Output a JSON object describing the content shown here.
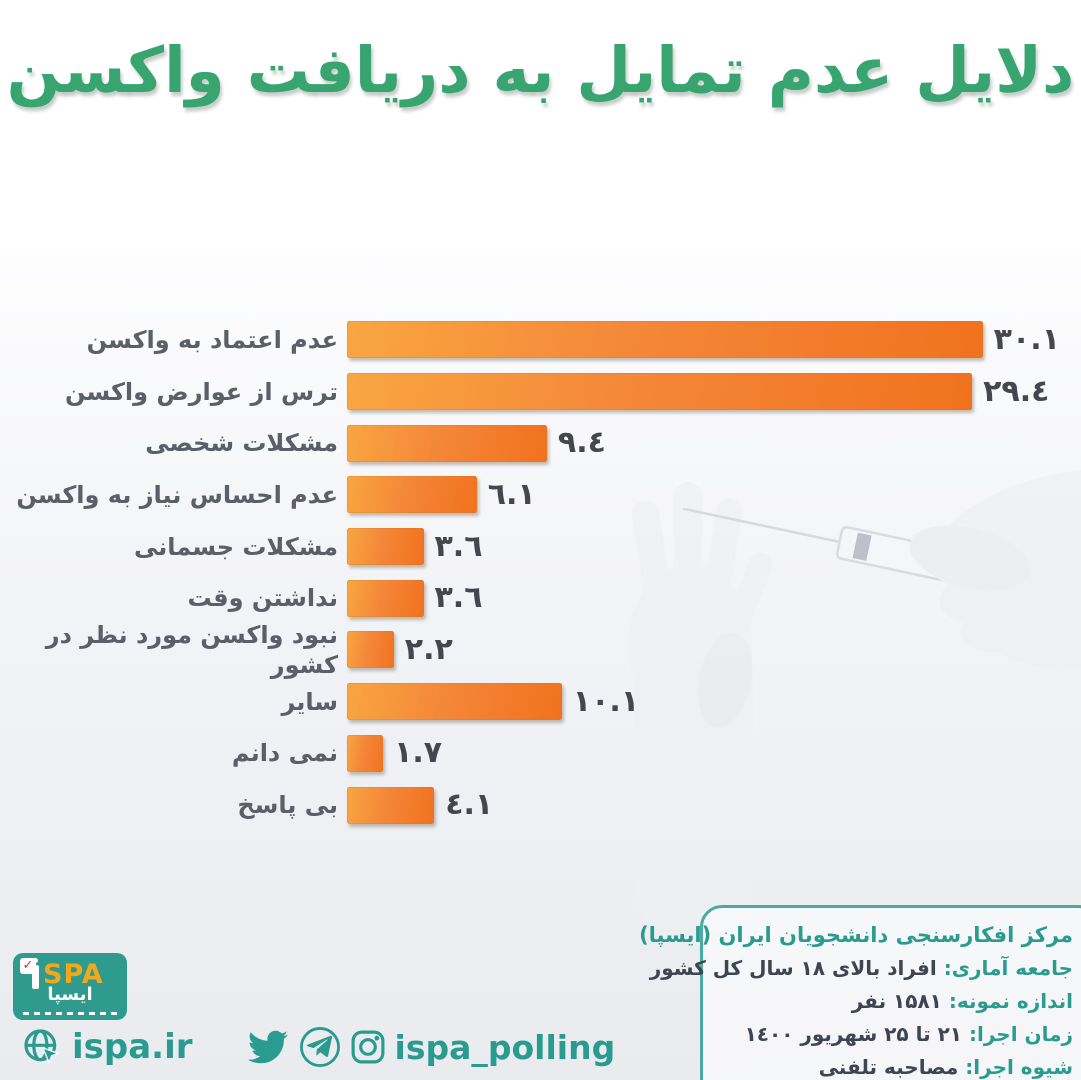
{
  "title": "دلایل عدم تمایل به دریافت واکسن",
  "colors": {
    "title_green": "#38a571",
    "teal": "#2a9b91",
    "bar_gradient_light": "#f9a641",
    "bar_gradient_dark": "#f1721e",
    "value_text": "#46464f",
    "label_text": "#5b6068",
    "logo_yellow": "#f3a81c",
    "logo_red": "#d6332c"
  },
  "chart_data": {
    "type": "bar",
    "orientation": "horizontal",
    "title": "دلایل عدم تمایل به دریافت واکسن",
    "categories": [
      "عدم اعتماد به واکسن",
      "ترس از عوارض واکسن",
      "مشکلات شخصی",
      "عدم احساس نیاز به واکسن",
      "مشکلات جسمانی",
      "نداشتن وقت",
      "نبود واکسن مورد نظر در کشور",
      "سایر",
      "نمی دانم",
      "بی پاسخ"
    ],
    "values": [
      30.1,
      29.4,
      9.4,
      6.1,
      3.6,
      3.6,
      2.2,
      10.1,
      1.7,
      4.1
    ],
    "value_labels": [
      "۳۰.۱",
      "۲۹.٤",
      "۹.٤",
      "٦.۱",
      "۳.٦",
      "۳.٦",
      "۲.۲",
      "۱۰.۱",
      "۱.۷",
      "٤.۱"
    ],
    "xlim": [
      0,
      30.1
    ],
    "grid": false,
    "legend": false
  },
  "info_box": {
    "title": "مرکز افکارسنجی دانشجویان ایران (ایسپا)",
    "rows": [
      {
        "label": "جامعه آماری:",
        "value": "افراد بالای ۱۸ سال کل کشور"
      },
      {
        "label": "اندازه نمونه:",
        "value": "۱۵۸۱ نفر"
      },
      {
        "label": "زمان اجرا:",
        "value": "۲۱ تا ۲۵ شهریور ۱٤۰۰"
      },
      {
        "label": "شیوه اجرا:",
        "value": "مصاحبه تلفنی"
      }
    ]
  },
  "footer": {
    "website": "ispa.ir",
    "handle": "ispa_polling",
    "logo": {
      "latin": "SPA",
      "persian": "ایسپا",
      "check_glyph": "✓"
    },
    "icons": [
      "globe-icon",
      "twitter-icon",
      "telegram-icon",
      "instagram-icon"
    ]
  }
}
